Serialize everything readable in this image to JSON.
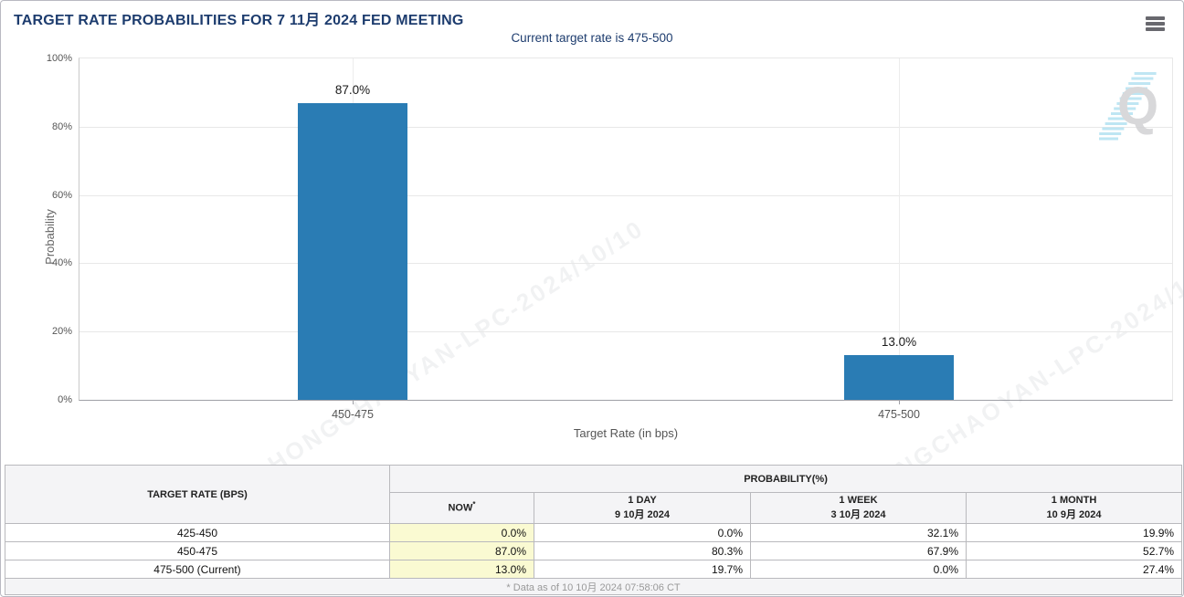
{
  "header": {
    "title": "TARGET RATE PROBABILITIES FOR 7 11月 2024 FED MEETING",
    "subtitle": "Current target rate is 475-500"
  },
  "chart_data": {
    "type": "bar",
    "title": "Target rate probabilities",
    "categories": [
      "450-475",
      "475-500"
    ],
    "values": [
      87.0,
      13.0
    ],
    "bar_labels": [
      "87.0%",
      "13.0%"
    ],
    "xlabel": "Target Rate (in bps)",
    "ylabel": "Probability",
    "ylim": [
      0,
      100
    ],
    "yticks": [
      "100%",
      "80%",
      "60%",
      "40%",
      "20%",
      "0%"
    ],
    "grid": true,
    "legend": false,
    "bar_color": "#2a7cb4",
    "watermark_logo": "Q",
    "watermark_text": "HONGCHAOYAN-LPC-2024/10/10"
  },
  "table": {
    "row_header": "TARGET RATE (BPS)",
    "col_group_header": "PROBABILITY(%)",
    "columns": [
      {
        "label": "NOW",
        "sup": "*",
        "date": ""
      },
      {
        "label": "1 DAY",
        "date": "9 10月 2024"
      },
      {
        "label": "1 WEEK",
        "date": "3 10月 2024"
      },
      {
        "label": "1 MONTH",
        "date": "10 9月 2024"
      }
    ],
    "rows": [
      {
        "rate": "425-450",
        "now": "0.0%",
        "day": "0.0%",
        "week": "32.1%",
        "month": "19.9%"
      },
      {
        "rate": "450-475",
        "now": "87.0%",
        "day": "80.3%",
        "week": "67.9%",
        "month": "52.7%"
      },
      {
        "rate": "475-500 (Current)",
        "now": "13.0%",
        "day": "19.7%",
        "week": "0.0%",
        "month": "27.4%"
      }
    ],
    "footnote": "* Data as of 10 10月 2024 07:58:06 CT"
  },
  "colors": {
    "title_navy": "#1d3c6e",
    "bar_blue": "#2a7cb4",
    "now_cell_bg": "#fafad2",
    "header_bg": "#f4f4f6"
  }
}
